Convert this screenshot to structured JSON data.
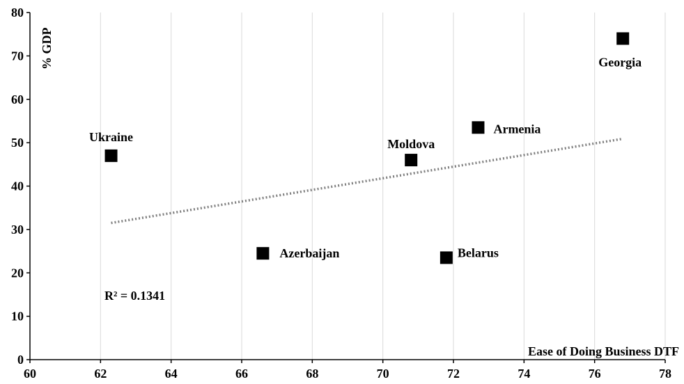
{
  "chart_data": {
    "type": "scatter",
    "title": "",
    "xlabel": "Ease of Doing Business DTF",
    "ylabel": "% GDP",
    "xlim": [
      60,
      78
    ],
    "ylim": [
      0,
      80
    ],
    "xticks": [
      60,
      62,
      64,
      66,
      68,
      70,
      72,
      74,
      76,
      78
    ],
    "yticks": [
      0,
      10,
      20,
      30,
      40,
      50,
      60,
      70,
      80
    ],
    "grid": "vertical gridlines only",
    "marker": "square",
    "marker_color": "#000000",
    "trendline": {
      "type": "linear",
      "style": "dotted",
      "color": "#7f7f7f",
      "x": [
        62.3,
        76.8
      ],
      "y": [
        31.5,
        50.9
      ]
    },
    "annotation": "R² = 0.1341",
    "points": [
      {
        "label": "Ukraine",
        "x": 62.3,
        "y": 47.0
      },
      {
        "label": "Azerbaijan",
        "x": 66.6,
        "y": 24.5
      },
      {
        "label": "Moldova",
        "x": 70.8,
        "y": 46.0
      },
      {
        "label": "Belarus",
        "x": 71.8,
        "y": 23.5
      },
      {
        "label": "Armenia",
        "x": 72.7,
        "y": 53.5
      },
      {
        "label": "Georgia",
        "x": 76.8,
        "y": 74.0
      }
    ]
  }
}
